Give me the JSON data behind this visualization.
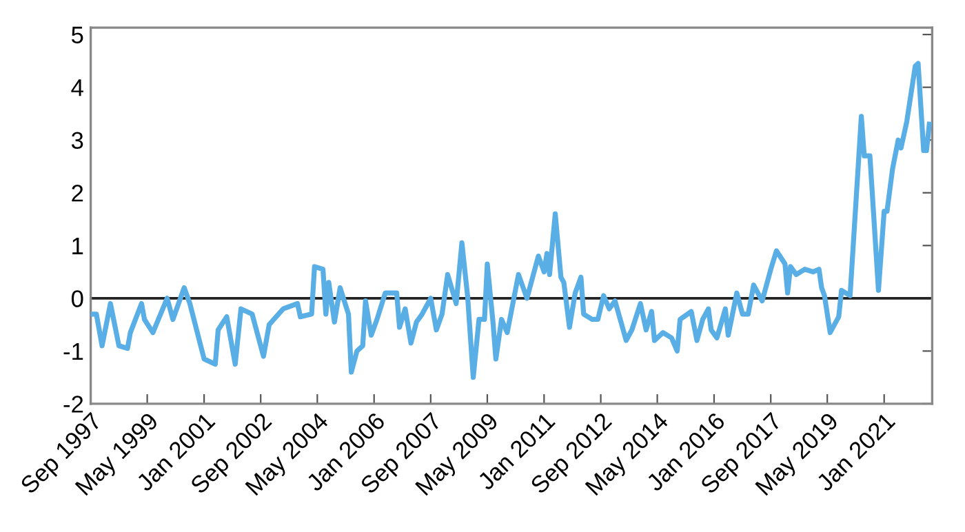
{
  "chart_data": {
    "type": "line",
    "x": [
      "1997-09",
      "1997-11",
      "1998-01",
      "1998-04",
      "1998-07",
      "1998-10",
      "1998-11",
      "1999-03",
      "1999-04",
      "1999-07",
      "1999-12",
      "2000-02",
      "2000-06",
      "2000-08",
      "2001-01",
      "2001-05",
      "2001-06",
      "2001-09",
      "2001-12",
      "2002-02",
      "2002-06",
      "2002-10",
      "2002-12",
      "2003-05",
      "2003-10",
      "2003-11",
      "2004-03",
      "2004-04",
      "2004-07",
      "2004-08",
      "2004-09",
      "2004-11",
      "2005-01",
      "2005-04",
      "2005-05",
      "2005-07",
      "2005-09",
      "2005-10",
      "2005-12",
      "2006-02",
      "2006-05",
      "2006-09",
      "2006-10",
      "2006-12",
      "2007-02",
      "2007-04",
      "2007-06",
      "2007-09",
      "2007-11",
      "2008-01",
      "2008-03",
      "2008-06",
      "2008-08",
      "2008-10",
      "2008-12",
      "2009-02",
      "2009-04",
      "2009-05",
      "2009-07",
      "2009-08",
      "2009-10",
      "2009-12",
      "2010-04",
      "2010-07",
      "2010-10",
      "2010-11",
      "2011-01",
      "2011-02",
      "2011-03",
      "2011-05",
      "2011-07",
      "2011-08",
      "2011-10",
      "2011-12",
      "2012-02",
      "2012-03",
      "2012-06",
      "2012-08",
      "2012-10",
      "2012-12",
      "2013-02",
      "2013-06",
      "2013-08",
      "2013-11",
      "2014-01",
      "2014-03",
      "2014-04",
      "2014-07",
      "2014-10",
      "2014-12",
      "2015-01",
      "2015-05",
      "2015-07",
      "2015-09",
      "2015-11",
      "2015-12",
      "2016-02",
      "2016-05",
      "2016-06",
      "2016-09",
      "2016-11",
      "2017-01",
      "2017-03",
      "2017-06",
      "2017-09",
      "2017-11",
      "2018-02",
      "2018-03",
      "2018-04",
      "2018-06",
      "2018-09",
      "2018-12",
      "2019-02",
      "2019-03",
      "2019-04",
      "2019-06",
      "2019-09",
      "2019-10",
      "2020-01",
      "2020-05",
      "2020-06",
      "2020-08",
      "2020-11",
      "2021-01",
      "2021-02",
      "2021-04",
      "2021-06",
      "2021-07",
      "2021-09",
      "2021-12",
      "2022-01",
      "2022-03",
      "2022-04",
      "2022-05"
    ],
    "series": [
      {
        "color": "#5aaee6",
        "values": [
          -0.3,
          -0.3,
          -0.9,
          -0.1,
          -0.9,
          -0.95,
          -0.65,
          -0.1,
          -0.4,
          -0.65,
          0,
          -0.4,
          0.2,
          -0.1,
          -1.15,
          -1.25,
          -0.6,
          -0.35,
          -1.25,
          -0.2,
          -0.3,
          -1.1,
          -0.5,
          -0.2,
          -0.1,
          -0.35,
          -0.3,
          0.6,
          0.55,
          -0.3,
          0.3,
          -0.45,
          0.2,
          -0.3,
          -1.4,
          -1.0,
          -0.9,
          -0.05,
          -0.7,
          -0.4,
          0.1,
          0.1,
          -0.55,
          -0.2,
          -0.85,
          -0.45,
          -0.3,
          0,
          -0.6,
          -0.3,
          0.45,
          -0.1,
          1.05,
          0.05,
          -1.5,
          -0.4,
          -0.4,
          0.65,
          -0.45,
          -1.15,
          -0.4,
          -0.65,
          0.45,
          0,
          0.6,
          0.8,
          0.5,
          0.85,
          0.45,
          1.6,
          0.4,
          0.3,
          -0.55,
          0.1,
          0.4,
          -0.3,
          -0.4,
          -0.4,
          0.05,
          -0.2,
          -0.05,
          -0.8,
          -0.6,
          -0.1,
          -0.6,
          -0.25,
          -0.8,
          -0.65,
          -0.75,
          -1.0,
          -0.4,
          -0.25,
          -0.8,
          -0.4,
          -0.2,
          -0.6,
          -0.75,
          -0.2,
          -0.7,
          0.1,
          -0.3,
          -0.3,
          0.25,
          -0.05,
          0.55,
          0.9,
          0.65,
          0.1,
          0.6,
          0.45,
          0.55,
          0.5,
          0.55,
          0.2,
          0.05,
          -0.65,
          -0.35,
          0.15,
          0.05,
          3.45,
          2.7,
          2.7,
          0.15,
          1.65,
          1.65,
          2.45,
          3.0,
          2.85,
          3.35,
          4.4,
          4.45,
          2.8,
          2.8,
          3.3
        ]
      }
    ],
    "xlim": [
      "1997-09",
      "2022-06"
    ],
    "xticks": [
      {
        "value": "1997-09",
        "label": "Sep 1997"
      },
      {
        "value": "1999-05",
        "label": "May 1999"
      },
      {
        "value": "2001-01",
        "label": "Jan 2001"
      },
      {
        "value": "2002-09",
        "label": "Sep 2002"
      },
      {
        "value": "2004-05",
        "label": "May 2004"
      },
      {
        "value": "2006-01",
        "label": "Jan 2006"
      },
      {
        "value": "2007-09",
        "label": "Sep 2007"
      },
      {
        "value": "2009-05",
        "label": "May 2009"
      },
      {
        "value": "2011-01",
        "label": "Jan 2011"
      },
      {
        "value": "2012-09",
        "label": "Sep 2012"
      },
      {
        "value": "2014-05",
        "label": "May 2014"
      },
      {
        "value": "2016-01",
        "label": "Jan 2016"
      },
      {
        "value": "2017-09",
        "label": "Sep 2017"
      },
      {
        "value": "2019-05",
        "label": "May 2019"
      },
      {
        "value": "2021-01",
        "label": "Jan 2021"
      }
    ],
    "ylim": [
      -2,
      5.13
    ],
    "yticks": [
      -2,
      -1,
      0,
      1,
      2,
      3,
      4,
      5
    ],
    "ref_lines": [
      {
        "axis": "y",
        "value": 0,
        "color": "#222222"
      }
    ],
    "grid": false,
    "legend": false,
    "marker": "none",
    "line_style": "solid"
  }
}
